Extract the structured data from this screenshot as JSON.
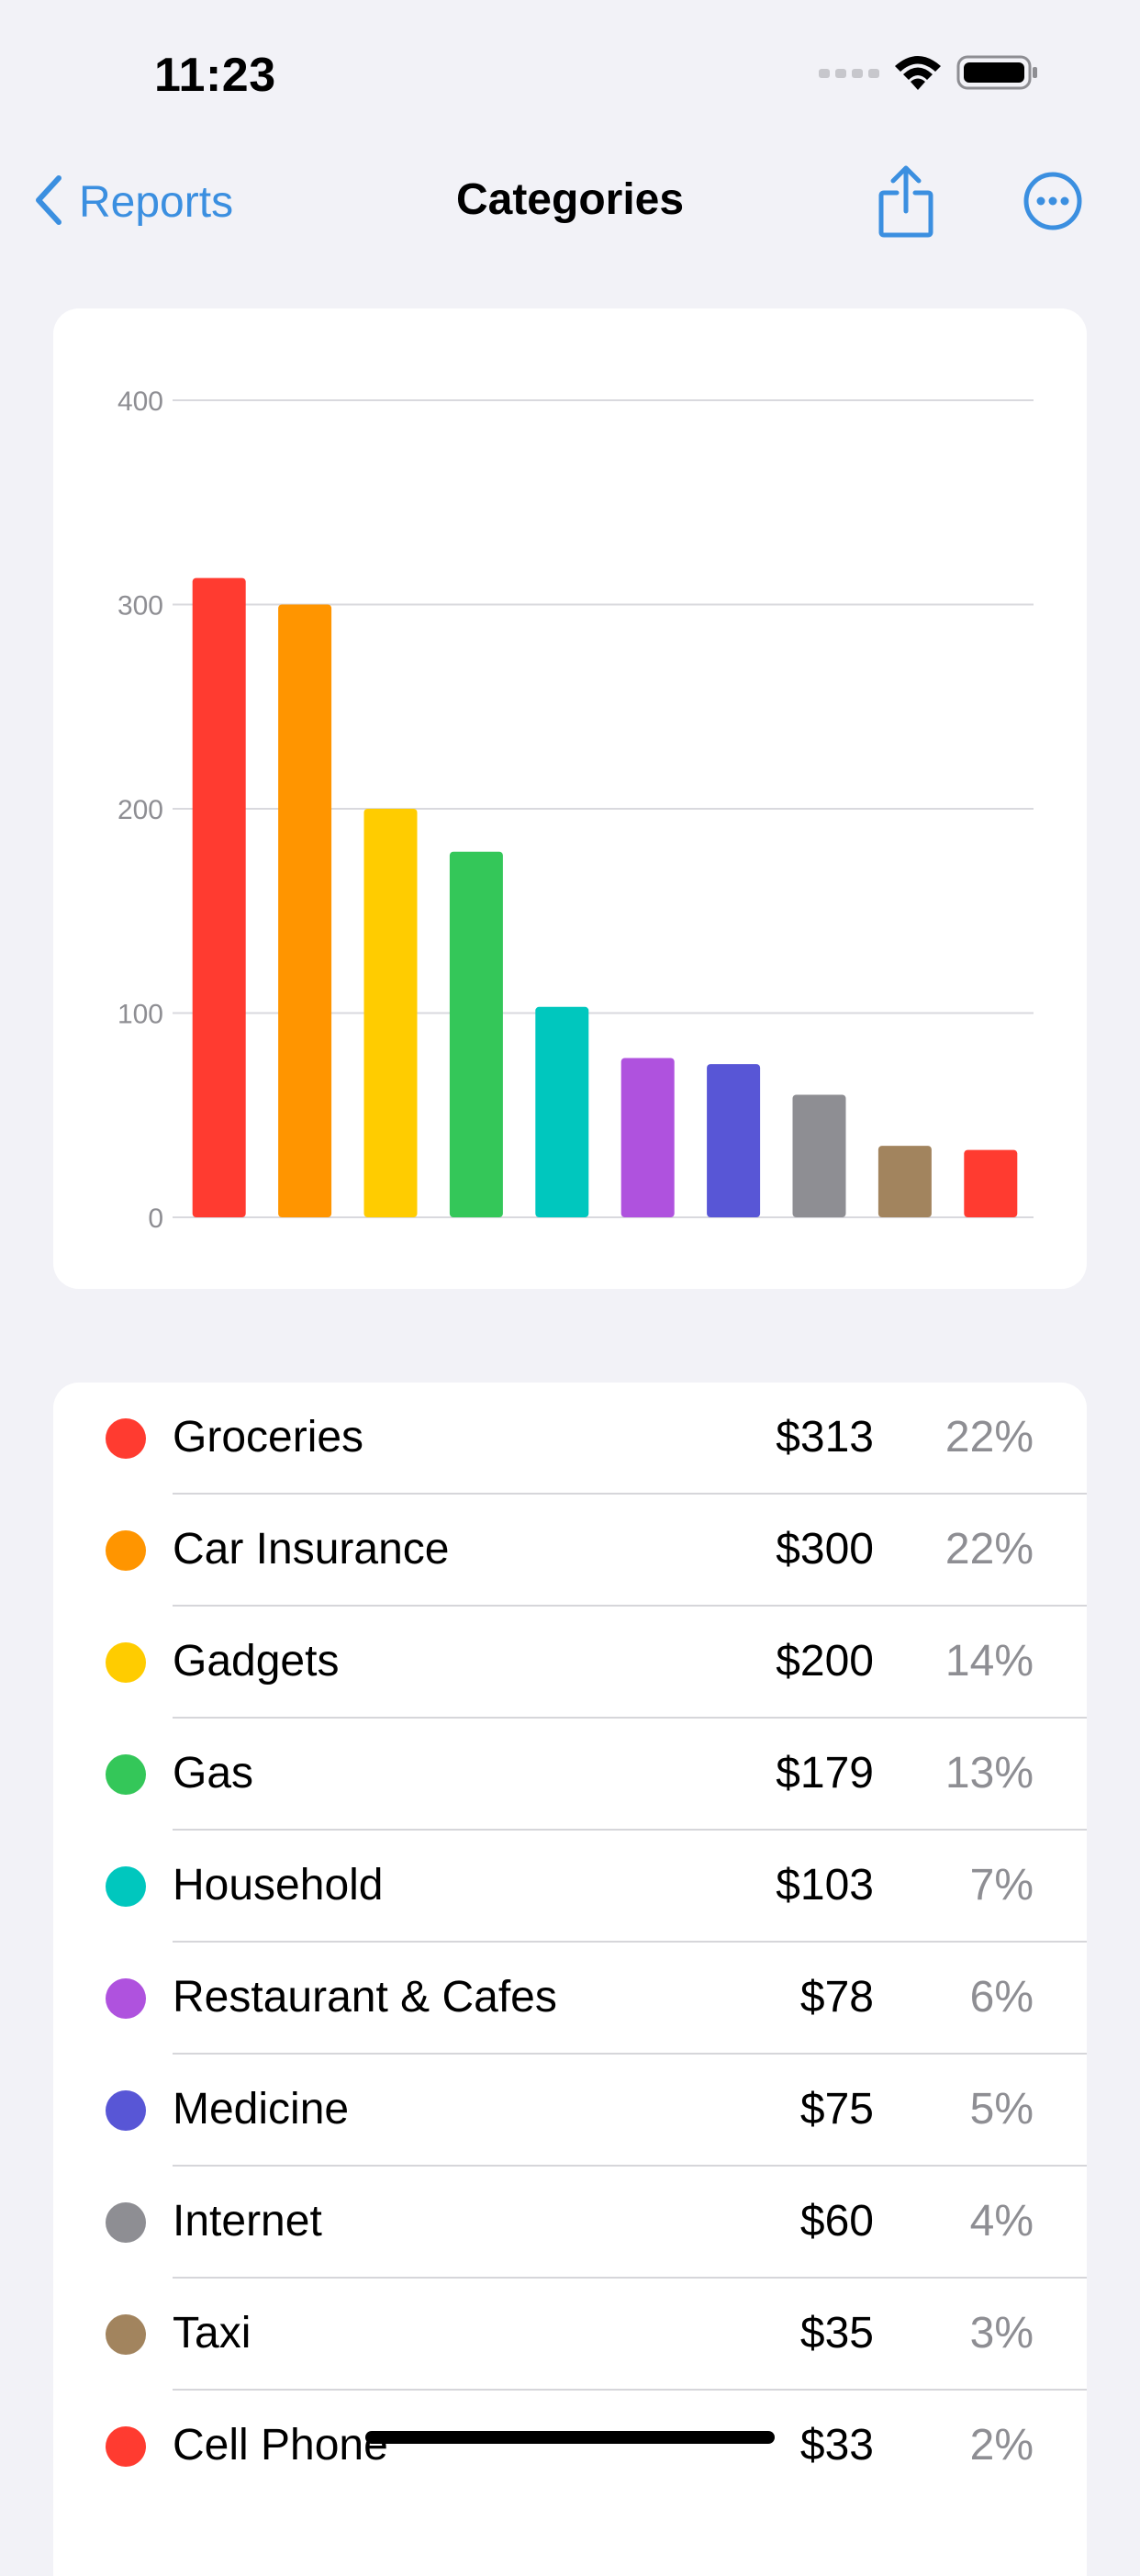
{
  "status_bar": {
    "time": "11:23"
  },
  "nav": {
    "back_label": "Reports",
    "title": "Categories",
    "share_icon": "share-icon",
    "more_icon": "ellipsis-circle-icon",
    "accent_color": "#3B8FE0"
  },
  "chart_data": {
    "type": "bar",
    "categories": [
      "Groceries",
      "Car Insurance",
      "Gadgets",
      "Gas",
      "Household",
      "Restaurant & Cafes",
      "Medicine",
      "Internet",
      "Taxi",
      "Cell Phone"
    ],
    "values": [
      313,
      300,
      200,
      179,
      103,
      78,
      75,
      60,
      35,
      33
    ],
    "colors": [
      "#FF3B30",
      "#FF9500",
      "#FFCC00",
      "#34C759",
      "#00C7BE",
      "#AF52DE",
      "#5856D6",
      "#8E8E93",
      "#A2845E",
      "#FF3B30"
    ],
    "yticks": [
      "0",
      "100",
      "200",
      "300",
      "400"
    ],
    "ylim": [
      0,
      400
    ],
    "grid": true
  },
  "categories": [
    {
      "name": "Groceries",
      "amount": "$313",
      "percent": "22%",
      "color": "#FF3B30"
    },
    {
      "name": "Car Insurance",
      "amount": "$300",
      "percent": "22%",
      "color": "#FF9500"
    },
    {
      "name": "Gadgets",
      "amount": "$200",
      "percent": "14%",
      "color": "#FFCC00"
    },
    {
      "name": "Gas",
      "amount": "$179",
      "percent": "13%",
      "color": "#34C759"
    },
    {
      "name": "Household",
      "amount": "$103",
      "percent": "7%",
      "color": "#00C7BE"
    },
    {
      "name": "Restaurant & Cafes",
      "amount": "$78",
      "percent": "6%",
      "color": "#AF52DE"
    },
    {
      "name": "Medicine",
      "amount": "$75",
      "percent": "5%",
      "color": "#5856D6"
    },
    {
      "name": "Internet",
      "amount": "$60",
      "percent": "4%",
      "color": "#8E8E93"
    },
    {
      "name": "Taxi",
      "amount": "$35",
      "percent": "3%",
      "color": "#A2845E"
    },
    {
      "name": "Cell Phone",
      "amount": "$33",
      "percent": "2%",
      "color": "#FF3B30"
    }
  ]
}
